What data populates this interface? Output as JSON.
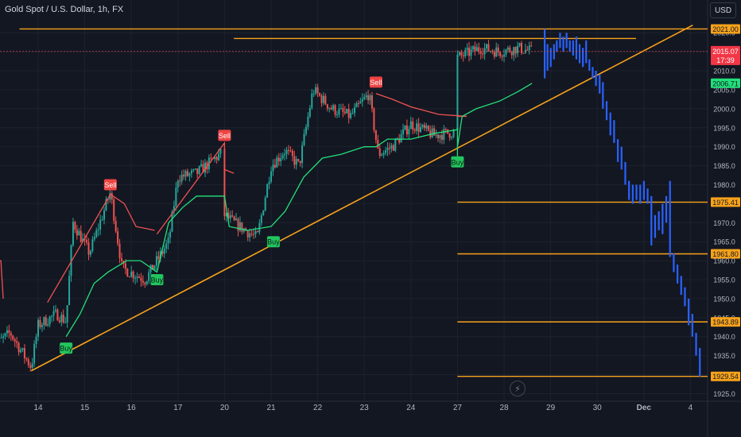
{
  "header": {
    "title": "Gold Spot / U.S. Dollar, 1h, FX",
    "currency": "USD"
  },
  "colors": {
    "background": "#131722",
    "grid": "#1e222d",
    "axis_text": "#b2b5be",
    "bull": "#26a69a",
    "bear": "#ef5350",
    "orange": "#f7a21b",
    "projection": "#2962ff",
    "trail_up": "#22e07a",
    "trail_down": "#f05252"
  },
  "icons": {
    "flash": "flash-icon"
  },
  "chart_data": {
    "type": "candlestick",
    "title": "Gold Spot / U.S. Dollar, 1h, FX",
    "ylim": [
      1923,
      2028
    ],
    "y_ticks": [
      1925,
      1930,
      1935,
      1940,
      1945,
      1950,
      1955,
      1960,
      1965,
      1970,
      1975,
      1980,
      1985,
      1990,
      1995,
      2000,
      2005,
      2010,
      2015,
      2020
    ],
    "x_ticks": [
      "14",
      "15",
      "16",
      "17",
      "20",
      "21",
      "22",
      "23",
      "24",
      "27",
      "28",
      "29",
      "30",
      "Dec",
      "4"
    ],
    "grid": true,
    "price_labels": [
      {
        "text": "2021.00",
        "value": 2021.0,
        "kind": "level"
      },
      {
        "text": "2015.07",
        "sub": "17:39",
        "value": 2015.07,
        "kind": "last"
      },
      {
        "text": "2006.71",
        "value": 2006.71,
        "kind": "indicator"
      },
      {
        "text": "1975.41",
        "value": 1975.41,
        "kind": "level"
      },
      {
        "text": "1961.80",
        "value": 1961.8,
        "kind": "level"
      },
      {
        "text": "1943.89",
        "value": 1943.89,
        "kind": "level"
      },
      {
        "text": "1929.54",
        "value": 1929.54,
        "kind": "level"
      }
    ],
    "horizontal_levels": [
      {
        "value": 2021.0,
        "x_start_day": 13.6
      },
      {
        "value": 2018.5,
        "x_start_day": 20.2
      },
      {
        "value": 1975.41,
        "x_start_day": 27.0
      },
      {
        "value": 1961.8,
        "x_start_day": 27.0
      },
      {
        "value": 1943.89,
        "x_start_day": 27.0
      },
      {
        "value": 1929.54,
        "x_start_day": 27.0
      }
    ],
    "trendline": {
      "from": {
        "day": 13.85,
        "value": 1931
      },
      "to": {
        "day": 32.05,
        "value": 2022
      }
    },
    "signals": [
      {
        "text": "Buy",
        "type": "buy",
        "day": 14.6,
        "value": 1937
      },
      {
        "text": "Buy",
        "type": "buy",
        "day": 16.55,
        "value": 1955
      },
      {
        "text": "Buy",
        "type": "buy",
        "day": 21.05,
        "value": 1965
      },
      {
        "text": "Buy",
        "type": "buy",
        "day": 26.6,
        "value": 1986
      },
      {
        "text": "Sell",
        "type": "sell",
        "day": 15.55,
        "value": 1980
      },
      {
        "text": "Sell",
        "type": "sell",
        "day": 18.2,
        "value": 1993
      },
      {
        "text": "Sell",
        "type": "sell",
        "day": 23.25,
        "value": 2007
      }
    ],
    "trail_red": [
      {
        "day": 13.0,
        "value": 1960
      },
      {
        "day": 13.2,
        "value": 1960
      },
      {
        "day": 13.25,
        "value": 1950
      },
      {
        "day": 14.2,
        "value": 1949
      },
      {
        "day": 15.55,
        "value": 1977.5
      },
      {
        "day": 15.85,
        "value": 1975
      },
      {
        "day": 16.1,
        "value": 1969
      },
      {
        "day": 16.5,
        "value": 1968
      },
      {
        "day": 16.55,
        "value": 1967
      },
      {
        "day": 18.2,
        "value": 1991
      },
      {
        "day": 18.8,
        "value": 1990
      },
      {
        "day": 19.4,
        "value": 1988
      },
      {
        "day": 19.8,
        "value": 1984
      },
      {
        "day": 20.2,
        "value": 1983
      },
      {
        "day": 23.25,
        "value": 2004
      },
      {
        "day": 23.6,
        "value": 2002.5
      },
      {
        "day": 24.0,
        "value": 2000.5
      },
      {
        "day": 24.6,
        "value": 1998.5
      },
      {
        "day": 25.2,
        "value": 1998
      },
      {
        "day": 25.6,
        "value": 1998
      }
    ],
    "trail_green": [
      {
        "day": 14.6,
        "value": 1940
      },
      {
        "day": 14.9,
        "value": 1946
      },
      {
        "day": 15.2,
        "value": 1954
      },
      {
        "day": 15.5,
        "value": 1957
      },
      {
        "day": 15.9,
        "value": 1960
      },
      {
        "day": 16.2,
        "value": 1960
      },
      {
        "day": 16.55,
        "value": 1957
      },
      {
        "day": 16.8,
        "value": 1970
      },
      {
        "day": 17.1,
        "value": 1974
      },
      {
        "day": 17.4,
        "value": 1977
      },
      {
        "day": 17.9,
        "value": 1977
      },
      {
        "day": 18.2,
        "value": 1977
      },
      {
        "day": 20.1,
        "value": 1969
      },
      {
        "day": 20.5,
        "value": 1968
      },
      {
        "day": 21.0,
        "value": 1969
      },
      {
        "day": 21.3,
        "value": 1973
      },
      {
        "day": 21.7,
        "value": 1982
      },
      {
        "day": 22.1,
        "value": 1987
      },
      {
        "day": 22.5,
        "value": 1988
      },
      {
        "day": 23.0,
        "value": 1990
      },
      {
        "day": 23.25,
        "value": 1990
      },
      {
        "day": 23.5,
        "value": 1992
      },
      {
        "day": 24.0,
        "value": 1992
      },
      {
        "day": 24.5,
        "value": 1993.5
      },
      {
        "day": 25.0,
        "value": 1994.5
      },
      {
        "day": 26.0,
        "value": 1995
      },
      {
        "day": 26.6,
        "value": 1987
      },
      {
        "day": 26.9,
        "value": 1990
      },
      {
        "day": 27.1,
        "value": 1998
      },
      {
        "day": 27.4,
        "value": 2000
      },
      {
        "day": 27.9,
        "value": 2002
      },
      {
        "day": 28.3,
        "value": 2004.5
      },
      {
        "day": 28.6,
        "value": 2006.7
      }
    ],
    "close_path": [
      {
        "day": 13.0,
        "value": 1937
      },
      {
        "day": 13.4,
        "value": 1941
      },
      {
        "day": 13.85,
        "value": 1932
      },
      {
        "day": 14.0,
        "value": 1943
      },
      {
        "day": 14.4,
        "value": 1946
      },
      {
        "day": 14.6,
        "value": 1944
      },
      {
        "day": 14.75,
        "value": 1970
      },
      {
        "day": 15.1,
        "value": 1962
      },
      {
        "day": 15.55,
        "value": 1978
      },
      {
        "day": 15.8,
        "value": 1958
      },
      {
        "day": 16.3,
        "value": 1955
      },
      {
        "day": 16.8,
        "value": 1965
      },
      {
        "day": 17.0,
        "value": 1982
      },
      {
        "day": 17.4,
        "value": 1983
      },
      {
        "day": 17.7,
        "value": 1986
      },
      {
        "day": 18.1,
        "value": 1990
      },
      {
        "day": 18.4,
        "value": 1979
      },
      {
        "day": 19.0,
        "value": 1975
      },
      {
        "day": 19.4,
        "value": 1978
      },
      {
        "day": 20.2,
        "value": 1970
      },
      {
        "day": 20.7,
        "value": 1966
      },
      {
        "day": 21.0,
        "value": 1985
      },
      {
        "day": 21.3,
        "value": 1989
      },
      {
        "day": 21.6,
        "value": 1985
      },
      {
        "day": 21.9,
        "value": 2005
      },
      {
        "day": 22.3,
        "value": 2000
      },
      {
        "day": 22.7,
        "value": 1998
      },
      {
        "day": 23.1,
        "value": 2004
      },
      {
        "day": 23.3,
        "value": 1988
      },
      {
        "day": 23.6,
        "value": 1990
      },
      {
        "day": 24.0,
        "value": 1996
      },
      {
        "day": 24.5,
        "value": 1993
      },
      {
        "day": 25.0,
        "value": 1994
      },
      {
        "day": 25.6,
        "value": 1997
      },
      {
        "day": 25.9,
        "value": 2003
      },
      {
        "day": 26.1,
        "value": 1999
      },
      {
        "day": 26.35,
        "value": 2013
      },
      {
        "day": 26.7,
        "value": 2012
      },
      {
        "day": 27.1,
        "value": 2014
      },
      {
        "day": 27.5,
        "value": 2016
      },
      {
        "day": 27.9,
        "value": 2015
      },
      {
        "day": 28.3,
        "value": 2016
      },
      {
        "day": 28.6,
        "value": 2015.07
      }
    ],
    "projection_bars": [
      {
        "day": 28.87,
        "low": 2008,
        "high": 2021
      },
      {
        "day": 28.93,
        "low": 2010,
        "high": 2017
      },
      {
        "day": 29.0,
        "low": 2011,
        "high": 2016
      },
      {
        "day": 29.07,
        "low": 2013,
        "high": 2017
      },
      {
        "day": 29.13,
        "low": 2015,
        "high": 2018
      },
      {
        "day": 29.2,
        "low": 2016,
        "high": 2020
      },
      {
        "day": 29.27,
        "low": 2015,
        "high": 2019
      },
      {
        "day": 29.34,
        "low": 2016,
        "high": 2020
      },
      {
        "day": 29.41,
        "low": 2015,
        "high": 2018
      },
      {
        "day": 29.48,
        "low": 2014,
        "high": 2018
      },
      {
        "day": 29.55,
        "low": 2013,
        "high": 2019
      },
      {
        "day": 29.62,
        "low": 2012,
        "high": 2017
      },
      {
        "day": 29.69,
        "low": 2011,
        "high": 2016
      },
      {
        "day": 29.76,
        "low": 2012,
        "high": 2018
      },
      {
        "day": 29.83,
        "low": 2010,
        "high": 2013
      },
      {
        "day": 29.9,
        "low": 2008,
        "high": 2011
      },
      {
        "day": 29.97,
        "low": 2006,
        "high": 2010
      },
      {
        "day": 30.05,
        "low": 2004,
        "high": 2009
      },
      {
        "day": 30.12,
        "low": 2000,
        "high": 2007
      },
      {
        "day": 30.2,
        "low": 1997,
        "high": 2002
      },
      {
        "day": 30.28,
        "low": 1993,
        "high": 1999
      },
      {
        "day": 30.36,
        "low": 1991,
        "high": 1997
      },
      {
        "day": 30.44,
        "low": 1986,
        "high": 1992
      },
      {
        "day": 30.52,
        "low": 1984,
        "high": 1990
      },
      {
        "day": 30.6,
        "low": 1980,
        "high": 1986
      },
      {
        "day": 30.68,
        "low": 1976,
        "high": 1981
      },
      {
        "day": 30.76,
        "low": 1975,
        "high": 1980
      },
      {
        "day": 30.84,
        "low": 1976,
        "high": 1980
      },
      {
        "day": 30.92,
        "low": 1975,
        "high": 1980
      },
      {
        "day": 31.0,
        "low": 1976,
        "high": 1981
      },
      {
        "day": 31.08,
        "low": 1975,
        "high": 1979
      },
      {
        "day": 31.16,
        "low": 1964,
        "high": 1977
      },
      {
        "day": 31.24,
        "low": 1966,
        "high": 1972
      },
      {
        "day": 31.32,
        "low": 1968,
        "high": 1973
      },
      {
        "day": 31.4,
        "low": 1967,
        "high": 1975
      },
      {
        "day": 31.48,
        "low": 1970,
        "high": 1977
      },
      {
        "day": 31.56,
        "low": 1961,
        "high": 1981
      },
      {
        "day": 31.64,
        "low": 1957,
        "high": 1962
      },
      {
        "day": 31.72,
        "low": 1954,
        "high": 1959
      },
      {
        "day": 31.8,
        "low": 1951,
        "high": 1956
      },
      {
        "day": 31.88,
        "low": 1948,
        "high": 1953
      },
      {
        "day": 31.96,
        "low": 1943,
        "high": 1950
      },
      {
        "day": 32.04,
        "low": 1940,
        "high": 1946
      },
      {
        "day": 32.12,
        "low": 1935,
        "high": 1941
      },
      {
        "day": 32.2,
        "low": 1929.5,
        "high": 1937
      }
    ]
  }
}
